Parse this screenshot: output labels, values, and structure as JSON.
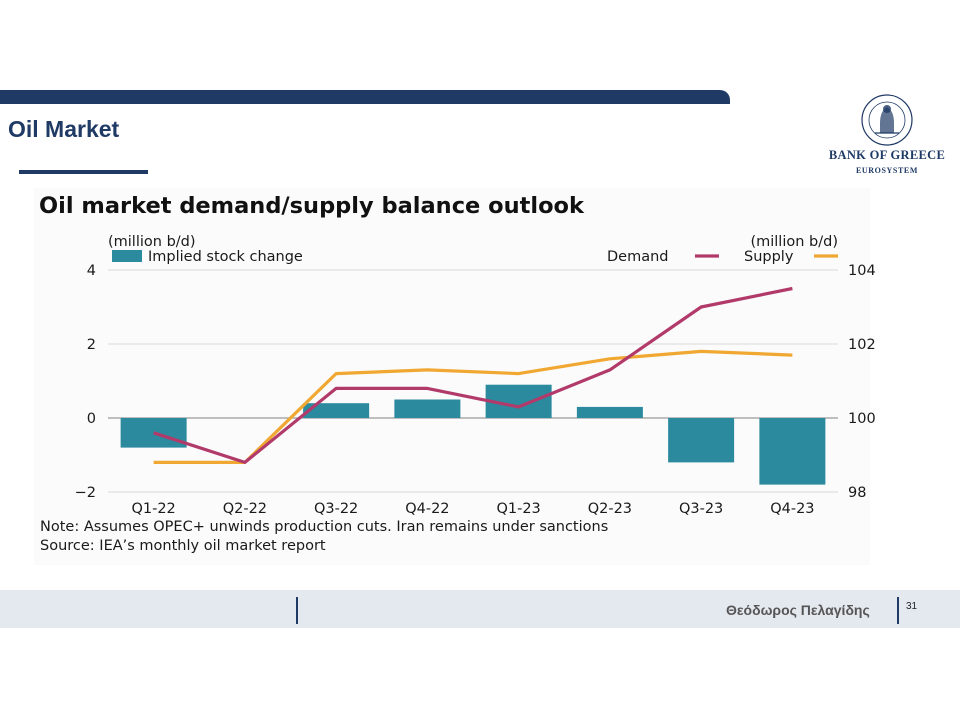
{
  "slide": {
    "title": "Oil Market",
    "presenter": "Θεόδωρος Πελαγίδης",
    "page_number": "31"
  },
  "logo": {
    "name": "BANK OF GREECE",
    "subtitle": "EUROSYSTEM",
    "seal_text": "ΤΡΑΠΕΖΑ ΤΗΣ ΕΛΛΑΔΟΣ 1928"
  },
  "colors": {
    "brand_navy": "#1f3a64",
    "bar": "#2b8a9e",
    "demand": "#b23a6a",
    "supply": "#f0a832"
  },
  "chart_data": {
    "type": "bar+line",
    "title": "Oil market demand/supply balance outlook",
    "left_axis_unit": "(million b/d)",
    "right_axis_unit": "(million b/d)",
    "categories": [
      "Q1-22",
      "Q2-22",
      "Q3-22",
      "Q4-22",
      "Q1-23",
      "Q2-23",
      "Q3-23",
      "Q4-23"
    ],
    "left_axis": {
      "ylim": [
        -2,
        4
      ],
      "ticks": [
        "4",
        "2",
        "0",
        "−2"
      ]
    },
    "right_axis": {
      "ylim": [
        98,
        104
      ],
      "ticks": [
        "104",
        "102",
        "100",
        "98"
      ]
    },
    "series": [
      {
        "name": "Implied stock change",
        "type": "bar",
        "axis": "left",
        "values": [
          -0.8,
          0,
          0.4,
          0.5,
          0.9,
          0.3,
          -1.2,
          -1.8
        ]
      },
      {
        "name": "Demand",
        "type": "line",
        "axis": "right",
        "values": [
          99.6,
          98.8,
          100.8,
          100.8,
          100.3,
          101.3,
          103.0,
          103.5
        ]
      },
      {
        "name": "Supply",
        "type": "line",
        "axis": "right",
        "values": [
          98.8,
          98.8,
          101.2,
          101.3,
          101.2,
          101.6,
          101.8,
          101.7
        ]
      }
    ],
    "legend": {
      "left_label": "Implied stock change",
      "demand_label": "Demand",
      "supply_label": "Supply"
    },
    "note": "Note: Assumes OPEC+ unwinds production cuts. Iran remains under sanctions",
    "source": "Source: IEA’s monthly oil market report",
    "grid": true
  }
}
